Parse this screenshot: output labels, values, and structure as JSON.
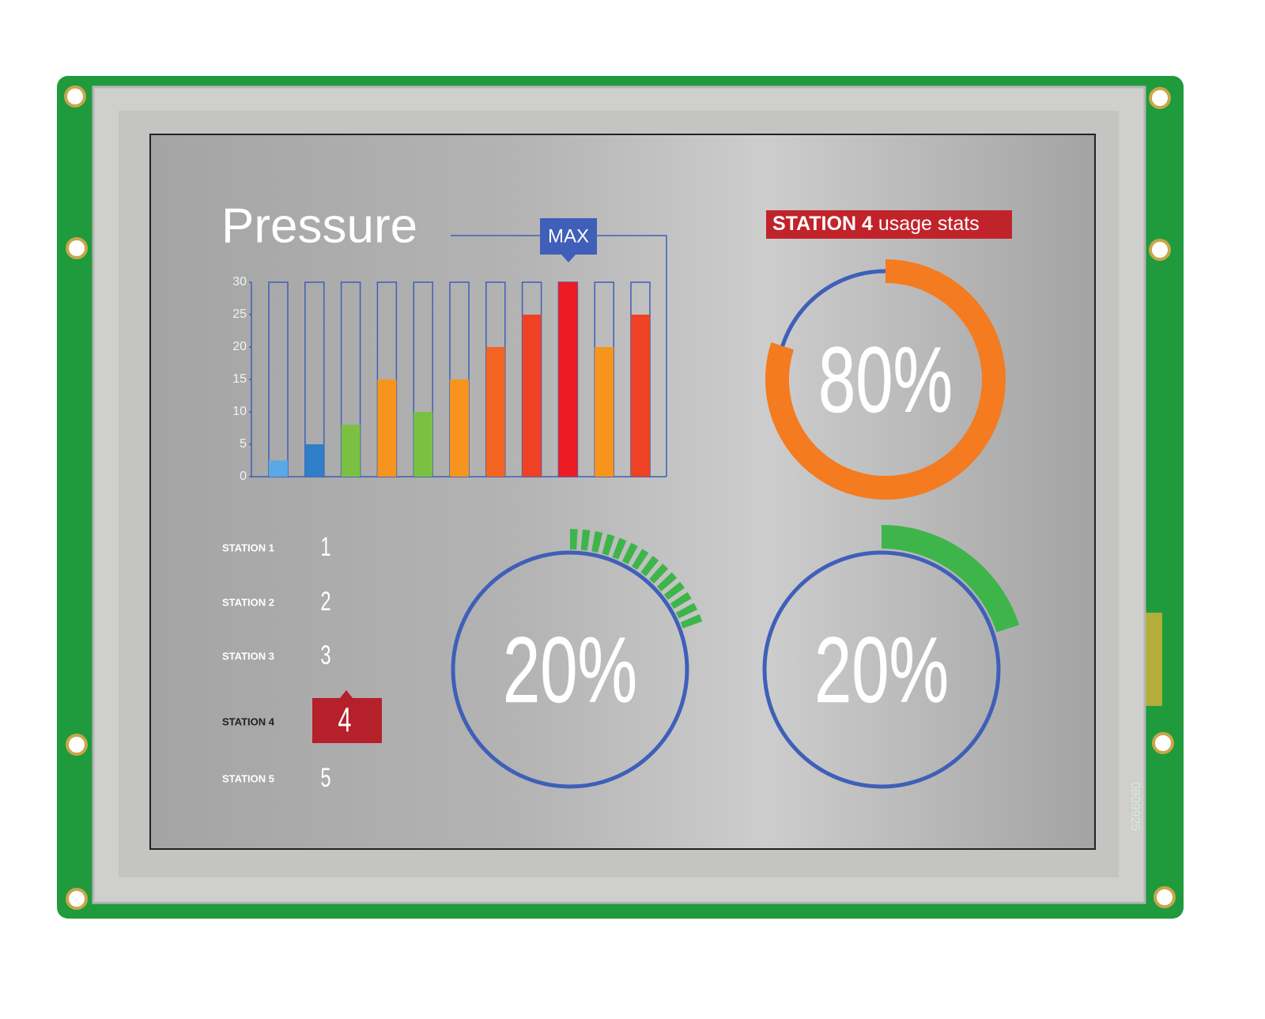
{
  "chart_data": {
    "type": "bar",
    "title": "Pressure",
    "annotation": "MAX",
    "values": [
      2.5,
      5,
      8,
      15,
      10,
      15,
      20,
      25,
      30,
      20,
      25
    ],
    "colors": [
      "#5aa8e6",
      "#2f7fc8",
      "#7ac143",
      "#f7941d",
      "#7ac143",
      "#f7941d",
      "#f26522",
      "#ef4123",
      "#ed1c24",
      "#f7941d",
      "#ef4123"
    ],
    "ylim": [
      0,
      30
    ],
    "yticks": [
      0,
      5,
      10,
      15,
      20,
      25,
      30
    ],
    "axis_color": "#3f5fb8"
  },
  "stats_title": {
    "station": "STATION 4",
    "text": "usage stats"
  },
  "gauges": {
    "values": [
      80,
      20,
      20
    ],
    "value_labels": [
      "80%",
      "20%",
      "20%"
    ],
    "colors": [
      "#f47b20",
      "#3db54a",
      "#3db54a"
    ],
    "styles": [
      "solid",
      "segmented",
      "solid"
    ],
    "ring_color": "#3f5fb8"
  },
  "stations": [
    {
      "label": "STATION 1",
      "number": 1
    },
    {
      "label": "STATION 2",
      "number": 2
    },
    {
      "label": "STATION 3",
      "number": 3
    },
    {
      "label": "STATION 4",
      "number": 4,
      "selected": true
    },
    {
      "label": "STATION 5",
      "number": 5
    }
  ],
  "board_label": "0809925"
}
